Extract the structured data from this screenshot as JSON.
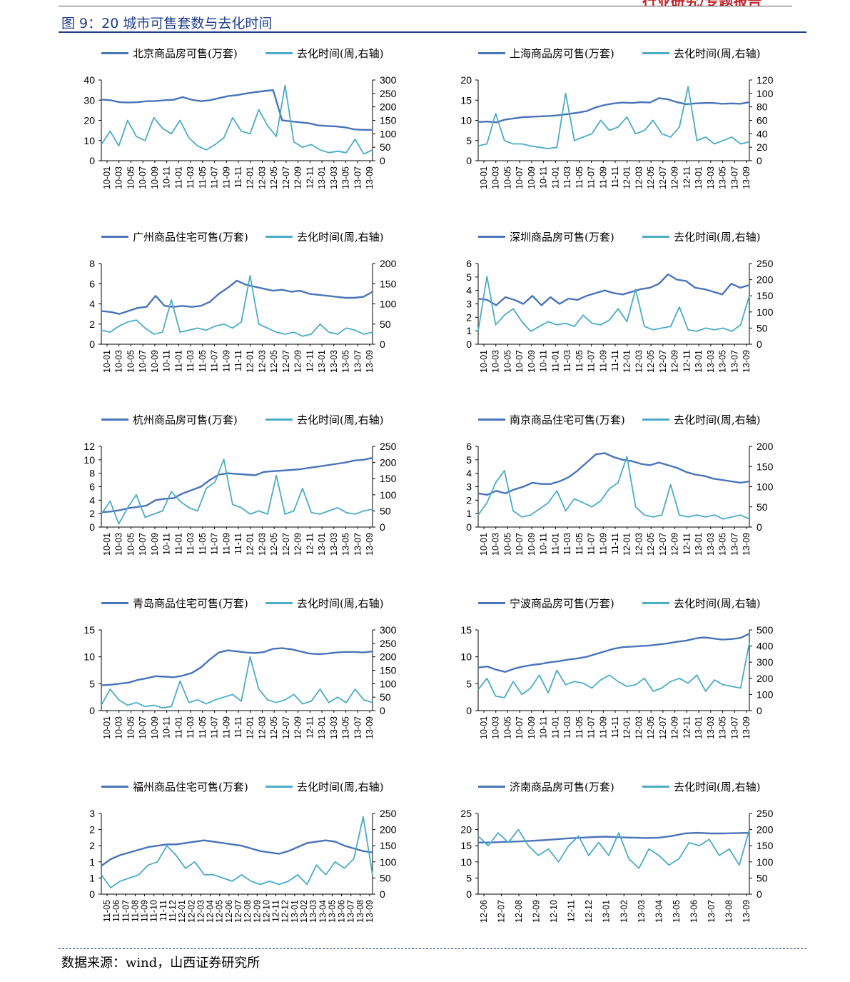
{
  "header": {
    "mark": "行业研究/专题报告",
    "figure_title": "图 9：20 城市可售套数与去化时间",
    "source": "数据来源：wind，山西证券研究所"
  },
  "colors": {
    "inventory": "#4a74b8",
    "months": "#4bacc6",
    "title": "#1f3c88",
    "axis": "#000000"
  },
  "charts": [
    {
      "city": "北京",
      "legend_left": "北京商品房可售(万套)",
      "legend_right": "去化时间(周,右轴)",
      "left_axis": {
        "min": 0,
        "max": 40,
        "ticks": [
          "0",
          "10",
          "20",
          "30",
          "40"
        ]
      },
      "right_axis": {
        "min": 0,
        "max": 300,
        "ticks": [
          "0",
          "50",
          "100",
          "150",
          "200",
          "250",
          "300"
        ]
      },
      "x_labels": [
        "10-01",
        "10-03",
        "10-05",
        "10-07",
        "10-09",
        "10-11",
        "11-01",
        "11-03",
        "11-05",
        "11-07",
        "11-09",
        "11-11",
        "12-01",
        "12-03",
        "12-05",
        "12-07",
        "12-09",
        "12-11",
        "13-01",
        "13-03",
        "13-05",
        "13-07",
        "13-09"
      ],
      "inventory": [
        30.3,
        30,
        29,
        28.8,
        29,
        29.5,
        29.6,
        30,
        30.2,
        31.5,
        30.2,
        29.5,
        30,
        31,
        32,
        32.5,
        33.3,
        34,
        34.5,
        35,
        20,
        19.5,
        19,
        18.5,
        17.5,
        17.2,
        17,
        16.5,
        15.5,
        15.3,
        15.3
      ],
      "turnover": [
        60,
        110,
        55,
        150,
        90,
        75,
        160,
        120,
        100,
        150,
        85,
        55,
        40,
        60,
        85,
        160,
        110,
        100,
        190,
        130,
        90,
        280,
        70,
        50,
        60,
        40,
        30,
        35,
        30,
        80,
        25,
        40
      ]
    },
    {
      "city": "上海",
      "legend_left": "上海商品房可售(万套)",
      "legend_right": "去化时间(周,右轴)",
      "left_axis": {
        "min": 0,
        "max": 20,
        "ticks": [
          "0",
          "5",
          "10",
          "15",
          "20"
        ]
      },
      "right_axis": {
        "min": 0,
        "max": 120,
        "ticks": [
          "0",
          "20",
          "40",
          "60",
          "80",
          "100",
          "120"
        ]
      },
      "x_labels": [
        "10-01",
        "10-03",
        "10-05",
        "10-07",
        "10-09",
        "10-11",
        "11-01",
        "11-03",
        "11-05",
        "11-07",
        "11-09",
        "11-11",
        "12-01",
        "12-03",
        "12-05",
        "12-07",
        "12-09",
        "12-11",
        "13-01",
        "13-03",
        "13-05",
        "13-07",
        "13-09"
      ],
      "inventory": [
        9.6,
        9.7,
        9.5,
        10.2,
        10.5,
        10.8,
        10.9,
        11,
        11.1,
        11.3,
        11.6,
        11.9,
        12.3,
        13.2,
        13.8,
        14.2,
        14.4,
        14.3,
        14.5,
        14.4,
        15.5,
        15.2,
        14.5,
        14,
        14.2,
        14.3,
        14.3,
        14.1,
        14.2,
        14.1,
        14.5
      ],
      "turnover": [
        22,
        25,
        70,
        30,
        25,
        25,
        22,
        20,
        18,
        20,
        100,
        30,
        35,
        40,
        60,
        45,
        50,
        65,
        40,
        45,
        60,
        40,
        35,
        50,
        110,
        30,
        35,
        25,
        30,
        35,
        25,
        28
      ]
    },
    {
      "city": "广州",
      "legend_left": "广州商品住宅可售(万套)",
      "legend_right": "去化时间(周,右轴)",
      "left_axis": {
        "min": 0,
        "max": 8,
        "ticks": [
          "0",
          "2",
          "4",
          "6",
          "8"
        ]
      },
      "right_axis": {
        "min": 0,
        "max": 200,
        "ticks": [
          "0",
          "50",
          "100",
          "150",
          "200"
        ]
      },
      "x_labels": [
        "10-01",
        "10-03",
        "10-05",
        "10-07",
        "10-09",
        "10-11",
        "11-01",
        "11-03",
        "11-05",
        "11-07",
        "11-09",
        "11-11",
        "12-01",
        "12-03",
        "12-05",
        "12-07",
        "12-09",
        "12-11",
        "13-01",
        "13-03",
        "13-05",
        "13-07",
        "13-09"
      ],
      "inventory": [
        3.3,
        3.2,
        3,
        3.3,
        3.6,
        3.7,
        4.8,
        3.8,
        3.7,
        3.8,
        3.7,
        3.8,
        4.2,
        5,
        5.6,
        6.3,
        5.9,
        5.7,
        5.5,
        5.3,
        5.4,
        5.2,
        5.3,
        5,
        4.9,
        4.8,
        4.7,
        4.6,
        4.6,
        4.7,
        5.2
      ],
      "turnover": [
        35,
        30,
        45,
        55,
        60,
        40,
        25,
        30,
        110,
        30,
        35,
        40,
        35,
        45,
        50,
        40,
        55,
        170,
        50,
        40,
        30,
        25,
        30,
        20,
        25,
        50,
        30,
        25,
        40,
        35,
        25,
        30
      ]
    },
    {
      "city": "深圳",
      "legend_left": "深圳商品房可售(万套)",
      "legend_right": "去化时间(周,右轴)",
      "left_axis": {
        "min": 0,
        "max": 6,
        "ticks": [
          "0",
          "1",
          "2",
          "3",
          "4",
          "5",
          "6"
        ]
      },
      "right_axis": {
        "min": 0,
        "max": 250,
        "ticks": [
          "0",
          "50",
          "100",
          "150",
          "200",
          "250"
        ]
      },
      "x_labels": [
        "10-01",
        "10-03",
        "10-05",
        "10-07",
        "10-09",
        "10-11",
        "11-01",
        "11-03",
        "11-05",
        "11-07",
        "11-09",
        "11-11",
        "12-01",
        "12-03",
        "12-05",
        "12-07",
        "12-09",
        "12-11",
        "13-01",
        "13-03",
        "13-05",
        "13-07",
        "13-09"
      ],
      "inventory": [
        3.4,
        3.3,
        2.9,
        3.5,
        3.3,
        3,
        3.6,
        2.9,
        3.5,
        3,
        3.4,
        3.3,
        3.6,
        3.8,
        4,
        3.8,
        3.7,
        3.9,
        4.1,
        4.2,
        4.5,
        5.2,
        4.8,
        4.7,
        4.2,
        4.1,
        3.9,
        3.7,
        4.5,
        4.2,
        4.4
      ],
      "turnover": [
        40,
        210,
        60,
        90,
        110,
        70,
        40,
        55,
        70,
        60,
        65,
        55,
        90,
        65,
        60,
        75,
        110,
        70,
        170,
        55,
        45,
        50,
        55,
        115,
        45,
        40,
        50,
        45,
        50,
        40,
        60,
        150
      ]
    },
    {
      "city": "杭州",
      "legend_left": "杭州商品房可售(万套)",
      "legend_right": "去化时间(周,右轴)",
      "left_axis": {
        "min": 0,
        "max": 12,
        "ticks": [
          "0",
          "2",
          "4",
          "6",
          "8",
          "10",
          "12"
        ]
      },
      "right_axis": {
        "min": 0,
        "max": 250,
        "ticks": [
          "0",
          "50",
          "100",
          "150",
          "200",
          "250"
        ]
      },
      "x_labels": [
        "10-01",
        "10-03",
        "10-05",
        "10-07",
        "10-09",
        "10-11",
        "11-01",
        "11-03",
        "11-05",
        "11-07",
        "11-09",
        "11-11",
        "12-01",
        "12-03",
        "12-05",
        "12-07",
        "12-09",
        "12-11",
        "13-01",
        "13-03",
        "13-05",
        "13-07",
        "13-09"
      ],
      "inventory": [
        2.2,
        2.3,
        2.5,
        2.8,
        3,
        3.2,
        4,
        4.2,
        4.3,
        5,
        5.5,
        6,
        7,
        7.8,
        8,
        7.9,
        7.8,
        7.7,
        8.2,
        8.3,
        8.4,
        8.5,
        8.6,
        8.8,
        9,
        9.2,
        9.4,
        9.6,
        9.9,
        10,
        10.3
      ],
      "turnover": [
        40,
        80,
        10,
        60,
        100,
        30,
        40,
        50,
        110,
        80,
        60,
        50,
        120,
        140,
        210,
        70,
        60,
        40,
        50,
        40,
        160,
        40,
        50,
        120,
        45,
        40,
        50,
        60,
        45,
        40,
        50,
        55
      ]
    },
    {
      "city": "南京",
      "legend_left": "南京商品住宅可售(万套)",
      "legend_right": "去化时间(周,右轴)",
      "left_axis": {
        "min": 0,
        "max": 6,
        "ticks": [
          "0",
          "1",
          "2",
          "3",
          "4",
          "5",
          "6"
        ]
      },
      "right_axis": {
        "min": 0,
        "max": 200,
        "ticks": [
          "0",
          "50",
          "100",
          "150",
          "200"
        ]
      },
      "x_labels": [
        "10-01",
        "10-03",
        "10-05",
        "10-07",
        "10-09",
        "10-11",
        "11-01",
        "11-03",
        "11-05",
        "11-07",
        "11-09",
        "11-11",
        "12-01",
        "12-03",
        "12-05",
        "12-07",
        "12-09",
        "12-11",
        "13-01",
        "13-03",
        "13-05",
        "13-07",
        "13-09"
      ],
      "inventory": [
        2.5,
        2.4,
        2.7,
        2.5,
        2.8,
        3,
        3.3,
        3.2,
        3.2,
        3.4,
        3.7,
        4.2,
        4.8,
        5.4,
        5.5,
        5.2,
        5,
        4.9,
        4.7,
        4.6,
        4.8,
        4.6,
        4.4,
        4.1,
        3.9,
        3.8,
        3.6,
        3.5,
        3.4,
        3.3,
        3.4
      ],
      "turnover": [
        30,
        60,
        110,
        140,
        40,
        25,
        30,
        45,
        60,
        90,
        40,
        70,
        60,
        50,
        65,
        95,
        110,
        175,
        50,
        30,
        25,
        30,
        105,
        30,
        25,
        30,
        25,
        30,
        20,
        25,
        30,
        20
      ]
    },
    {
      "city": "青岛",
      "legend_left": "青岛商品住宅可售(万套)",
      "legend_right": "去化时间(周,右轴)",
      "left_axis": {
        "min": 0,
        "max": 15,
        "ticks": [
          "0",
          "5",
          "10",
          "15"
        ]
      },
      "right_axis": {
        "min": 0,
        "max": 300,
        "ticks": [
          "0",
          "50",
          "100",
          "150",
          "200",
          "250",
          "300"
        ]
      },
      "x_labels": [
        "10-01",
        "10-03",
        "10-05",
        "10-07",
        "10-09",
        "10-11",
        "11-01",
        "11-03",
        "11-05",
        "11-07",
        "11-09",
        "11-11",
        "12-01",
        "12-03",
        "12-05",
        "12-07",
        "12-09",
        "12-11",
        "13-01",
        "13-03",
        "13-05",
        "13-07",
        "13-09"
      ],
      "inventory": [
        4.7,
        4.8,
        5,
        5.2,
        5.7,
        6,
        6.4,
        6.3,
        6.2,
        6.5,
        7,
        8,
        9.5,
        10.8,
        11.2,
        11,
        10.8,
        10.7,
        10.9,
        11.5,
        11.6,
        11.4,
        11,
        10.6,
        10.5,
        10.6,
        10.8,
        10.9,
        10.9,
        10.8,
        11
      ],
      "turnover": [
        20,
        80,
        40,
        20,
        30,
        15,
        20,
        10,
        15,
        110,
        30,
        40,
        25,
        40,
        50,
        60,
        35,
        200,
        80,
        40,
        30,
        40,
        60,
        25,
        35,
        80,
        30,
        50,
        30,
        80,
        40,
        30
      ]
    },
    {
      "city": "宁波",
      "legend_left": "宁波商品房可售(万套)",
      "legend_right": "去化时间(周,右轴)",
      "left_axis": {
        "min": 0,
        "max": 15,
        "ticks": [
          "0",
          "5",
          "10",
          "15"
        ]
      },
      "right_axis": {
        "min": 0,
        "max": 500,
        "ticks": [
          "0",
          "100",
          "200",
          "300",
          "400",
          "500"
        ]
      },
      "x_labels": [
        "10-01",
        "10-03",
        "10-05",
        "10-07",
        "10-09",
        "10-11",
        "11-01",
        "11-03",
        "11-05",
        "11-07",
        "11-09",
        "11-11",
        "12-01",
        "12-03",
        "12-05",
        "12-07",
        "12-09",
        "12-11",
        "13-01",
        "13-03",
        "13-05",
        "13-07",
        "13-09"
      ],
      "inventory": [
        8,
        8.2,
        7.6,
        7.2,
        7.8,
        8.2,
        8.5,
        8.7,
        9,
        9.2,
        9.5,
        9.7,
        10,
        10.5,
        11,
        11.5,
        11.8,
        11.9,
        12,
        12.1,
        12.3,
        12.5,
        12.8,
        13,
        13.4,
        13.6,
        13.4,
        13.2,
        13.3,
        13.5,
        14.3
      ],
      "turnover": [
        130,
        200,
        90,
        80,
        180,
        100,
        140,
        220,
        110,
        250,
        160,
        180,
        170,
        140,
        190,
        220,
        180,
        150,
        160,
        200,
        120,
        140,
        180,
        200,
        170,
        220,
        120,
        190,
        160,
        150,
        140,
        420
      ]
    },
    {
      "city": "福州",
      "legend_left": "福州商品住宅可售(万套)",
      "legend_right": "去化时间(周,右轴)",
      "left_axis": {
        "min": 0,
        "max": 3,
        "ticks": [
          "0",
          "1",
          "1",
          "2",
          "2",
          "3"
        ]
      },
      "right_axis": {
        "min": 0,
        "max": 250,
        "ticks": [
          "0",
          "50",
          "100",
          "150",
          "200",
          "250"
        ]
      },
      "x_labels": [
        "11-05",
        "11-06",
        "11-07",
        "11-08",
        "11-09",
        "11-10",
        "11-11",
        "11-12",
        "12-01",
        "12-02",
        "12-03",
        "12-04",
        "12-05",
        "12-06",
        "12-07",
        "12-08",
        "12-09",
        "12-10",
        "12-11",
        "12-12",
        "13-01",
        "13-02",
        "13-03",
        "13-04",
        "13-05",
        "13-06",
        "13-07",
        "13-08",
        "13-09"
      ],
      "inventory": [
        1.05,
        1.3,
        1.45,
        1.55,
        1.65,
        1.75,
        1.8,
        1.85,
        1.85,
        1.9,
        1.95,
        2,
        1.95,
        1.9,
        1.85,
        1.8,
        1.7,
        1.6,
        1.55,
        1.5,
        1.6,
        1.75,
        1.9,
        1.95,
        2,
        1.95,
        1.8,
        1.7,
        1.6,
        1.55
      ],
      "turnover": [
        60,
        20,
        40,
        50,
        60,
        90,
        100,
        150,
        120,
        80,
        100,
        60,
        60,
        50,
        40,
        60,
        40,
        30,
        40,
        30,
        40,
        60,
        30,
        90,
        60,
        100,
        80,
        110,
        240,
        60
      ]
    },
    {
      "city": "济南",
      "legend_left": "济南商品房可售(万套)",
      "legend_right": "去化时间(周,右轴)",
      "left_axis": {
        "min": 0,
        "max": 25,
        "ticks": [
          "0",
          "5",
          "10",
          "15",
          "20",
          "25"
        ]
      },
      "right_axis": {
        "min": 0,
        "max": 250,
        "ticks": [
          "0",
          "50",
          "100",
          "150",
          "200",
          "250"
        ]
      },
      "x_labels": [
        "12-06",
        "12-07",
        "12-08",
        "12-09",
        "12-10",
        "12-11",
        "12-12",
        "13-01",
        "13-02",
        "13-03",
        "13-04",
        "13-05",
        "13-06",
        "13-07",
        "13-08",
        "13-09"
      ],
      "inventory": [
        16,
        16,
        16.2,
        16.3,
        16.5,
        16.7,
        17,
        17.3,
        17.5,
        17.7,
        17.8,
        17.6,
        17.5,
        17.4,
        17.5,
        18,
        18.8,
        19,
        18.8,
        18.8,
        18.9,
        19
      ],
      "turnover": [
        180,
        150,
        190,
        160,
        200,
        150,
        120,
        140,
        100,
        150,
        180,
        120,
        160,
        120,
        190,
        110,
        80,
        140,
        120,
        90,
        110,
        160,
        150,
        170,
        120,
        140,
        90,
        200
      ]
    }
  ]
}
